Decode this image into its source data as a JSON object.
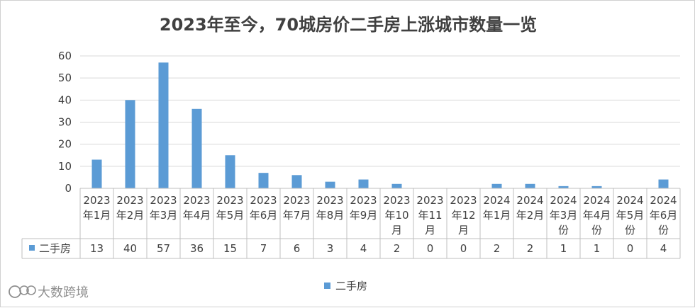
{
  "chart_data": {
    "type": "bar",
    "title": "2023年至今，70城房价二手房上涨城市数量一览",
    "categories": [
      [
        "2023",
        "年1月"
      ],
      [
        "2023",
        "年2月"
      ],
      [
        "2023",
        "年3月"
      ],
      [
        "2023",
        "年4月"
      ],
      [
        "2023",
        "年5月"
      ],
      [
        "2023",
        "年6月"
      ],
      [
        "2023",
        "年7月"
      ],
      [
        "2023",
        "年8月"
      ],
      [
        "2023",
        "年9月"
      ],
      [
        "2023",
        "年10",
        "月"
      ],
      [
        "2023",
        "年11",
        "月"
      ],
      [
        "2023",
        "年12",
        "月"
      ],
      [
        "2024",
        "年1月"
      ],
      [
        "2024",
        "年2月"
      ],
      [
        "2024",
        "年3月",
        "份"
      ],
      [
        "2024",
        "年4月",
        "份"
      ],
      [
        "2024",
        "年5月",
        "份"
      ],
      [
        "2024",
        "年6月",
        "份"
      ]
    ],
    "series": [
      {
        "name": "二手房",
        "values": [
          13,
          40,
          57,
          36,
          15,
          7,
          6,
          3,
          4,
          2,
          0,
          0,
          2,
          2,
          1,
          1,
          0,
          4
        ]
      }
    ],
    "ylim": [
      0,
      60
    ],
    "yticks": [
      0,
      10,
      20,
      30,
      40,
      50,
      60
    ],
    "grid": true,
    "legend_position": "bottom",
    "data_table": true,
    "bar_color": "#5b9bd5"
  },
  "watermark": "大数跨境"
}
